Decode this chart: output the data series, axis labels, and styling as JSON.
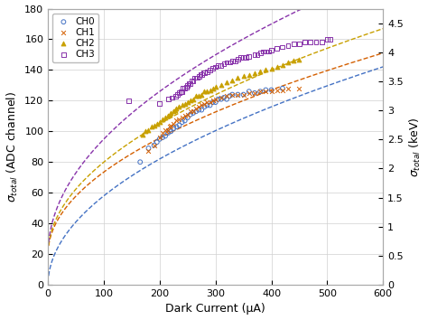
{
  "title": "",
  "xlabel": "Dark Current (μA)",
  "ylabel_left": "σ_total (ADC channel)",
  "ylabel_right": "σ_total (keV)",
  "xlim": [
    0,
    600
  ],
  "ylim_left": [
    0,
    180
  ],
  "ylim_right": [
    0,
    4.75
  ],
  "yticks_left": [
    0,
    20,
    40,
    60,
    80,
    100,
    120,
    140,
    160,
    180
  ],
  "yticks_right": [
    0,
    0.5,
    1.0,
    1.5,
    2.0,
    2.5,
    3.0,
    3.5,
    4.0,
    4.5
  ],
  "xticks": [
    0,
    100,
    200,
    300,
    400,
    500,
    600
  ],
  "colors": {
    "CH0": "#4472c4",
    "CH1": "#d45f00",
    "CH2": "#c8a000",
    "CH3": "#8833aa"
  },
  "CH0_scatter": [
    [
      165,
      80
    ],
    [
      180,
      89
    ],
    [
      190,
      91
    ],
    [
      195,
      93
    ],
    [
      200,
      95
    ],
    [
      205,
      96
    ],
    [
      210,
      97
    ],
    [
      215,
      99
    ],
    [
      218,
      101
    ],
    [
      220,
      100
    ],
    [
      225,
      102
    ],
    [
      230,
      103
    ],
    [
      235,
      104
    ],
    [
      240,
      106
    ],
    [
      245,
      107
    ],
    [
      250,
      109
    ],
    [
      255,
      111
    ],
    [
      260,
      112
    ],
    [
      265,
      113
    ],
    [
      270,
      114
    ],
    [
      275,
      114
    ],
    [
      280,
      116
    ],
    [
      285,
      117
    ],
    [
      290,
      117
    ],
    [
      295,
      119
    ],
    [
      300,
      119
    ],
    [
      305,
      121
    ],
    [
      310,
      121
    ],
    [
      315,
      122
    ],
    [
      320,
      121
    ],
    [
      325,
      123
    ],
    [
      330,
      124
    ],
    [
      340,
      124
    ],
    [
      350,
      124
    ],
    [
      360,
      126
    ],
    [
      370,
      125
    ],
    [
      380,
      126
    ],
    [
      390,
      127
    ],
    [
      400,
      127
    ],
    [
      420,
      128
    ]
  ],
  "CH1_scatter": [
    [
      180,
      87
    ],
    [
      190,
      91
    ],
    [
      200,
      96
    ],
    [
      205,
      99
    ],
    [
      210,
      101
    ],
    [
      215,
      101
    ],
    [
      218,
      103
    ],
    [
      220,
      104
    ],
    [
      225,
      105
    ],
    [
      230,
      107
    ],
    [
      235,
      108
    ],
    [
      240,
      109
    ],
    [
      245,
      110
    ],
    [
      250,
      111
    ],
    [
      255,
      113
    ],
    [
      260,
      113
    ],
    [
      265,
      115
    ],
    [
      270,
      116
    ],
    [
      275,
      117
    ],
    [
      280,
      118
    ],
    [
      285,
      119
    ],
    [
      290,
      119
    ],
    [
      295,
      120
    ],
    [
      300,
      121
    ],
    [
      310,
      122
    ],
    [
      320,
      123
    ],
    [
      330,
      124
    ],
    [
      340,
      124
    ],
    [
      350,
      124
    ],
    [
      360,
      125
    ],
    [
      370,
      125
    ],
    [
      380,
      126
    ],
    [
      390,
      126
    ],
    [
      400,
      126
    ],
    [
      410,
      127
    ],
    [
      420,
      127
    ],
    [
      430,
      128
    ],
    [
      450,
      128
    ]
  ],
  "CH2_scatter": [
    [
      170,
      98
    ],
    [
      175,
      100
    ],
    [
      180,
      101
    ],
    [
      185,
      103
    ],
    [
      190,
      104
    ],
    [
      195,
      105
    ],
    [
      200,
      106
    ],
    [
      205,
      108
    ],
    [
      210,
      109
    ],
    [
      215,
      110
    ],
    [
      218,
      111
    ],
    [
      220,
      112
    ],
    [
      225,
      113
    ],
    [
      228,
      114
    ],
    [
      230,
      115
    ],
    [
      235,
      116
    ],
    [
      240,
      117
    ],
    [
      245,
      118
    ],
    [
      250,
      119
    ],
    [
      255,
      120
    ],
    [
      260,
      121
    ],
    [
      265,
      123
    ],
    [
      270,
      123
    ],
    [
      275,
      124
    ],
    [
      280,
      126
    ],
    [
      285,
      126
    ],
    [
      290,
      127
    ],
    [
      295,
      128
    ],
    [
      300,
      129
    ],
    [
      310,
      130
    ],
    [
      320,
      132
    ],
    [
      330,
      133
    ],
    [
      340,
      135
    ],
    [
      350,
      136
    ],
    [
      360,
      137
    ],
    [
      370,
      138
    ],
    [
      380,
      139
    ],
    [
      390,
      140
    ],
    [
      400,
      141
    ],
    [
      410,
      142
    ],
    [
      420,
      143
    ],
    [
      430,
      145
    ],
    [
      440,
      146
    ],
    [
      450,
      147
    ]
  ],
  "CH3_scatter": [
    [
      145,
      120
    ],
    [
      200,
      118
    ],
    [
      215,
      121
    ],
    [
      222,
      122
    ],
    [
      228,
      123
    ],
    [
      232,
      124
    ],
    [
      235,
      125
    ],
    [
      238,
      126
    ],
    [
      240,
      126
    ],
    [
      242,
      128
    ],
    [
      245,
      128
    ],
    [
      248,
      129
    ],
    [
      250,
      130
    ],
    [
      252,
      131
    ],
    [
      255,
      131
    ],
    [
      258,
      133
    ],
    [
      260,
      133
    ],
    [
      262,
      135
    ],
    [
      265,
      135
    ],
    [
      268,
      135
    ],
    [
      270,
      136
    ],
    [
      273,
      137
    ],
    [
      275,
      137
    ],
    [
      278,
      138
    ],
    [
      280,
      138
    ],
    [
      285,
      139
    ],
    [
      290,
      140
    ],
    [
      295,
      141
    ],
    [
      300,
      142
    ],
    [
      305,
      143
    ],
    [
      310,
      143
    ],
    [
      315,
      144
    ],
    [
      320,
      145
    ],
    [
      325,
      145
    ],
    [
      330,
      146
    ],
    [
      335,
      146
    ],
    [
      340,
      147
    ],
    [
      345,
      148
    ],
    [
      350,
      148
    ],
    [
      355,
      148
    ],
    [
      360,
      149
    ],
    [
      370,
      150
    ],
    [
      375,
      150
    ],
    [
      380,
      151
    ],
    [
      385,
      152
    ],
    [
      390,
      152
    ],
    [
      395,
      152
    ],
    [
      400,
      153
    ],
    [
      410,
      154
    ],
    [
      420,
      155
    ],
    [
      430,
      156
    ],
    [
      440,
      157
    ],
    [
      450,
      157
    ],
    [
      460,
      158
    ],
    [
      470,
      158
    ],
    [
      480,
      158
    ],
    [
      490,
      158
    ],
    [
      500,
      160
    ],
    [
      505,
      160
    ]
  ],
  "fit_CH0": {
    "a": 5.8,
    "b": 0.0
  },
  "fit_CH1": {
    "a": 5.35,
    "b": 20.0
  },
  "fit_CH2": {
    "a": 6.0,
    "b": 20.0
  },
  "fit_CH3": {
    "a": 7.5,
    "b": 20.0
  }
}
